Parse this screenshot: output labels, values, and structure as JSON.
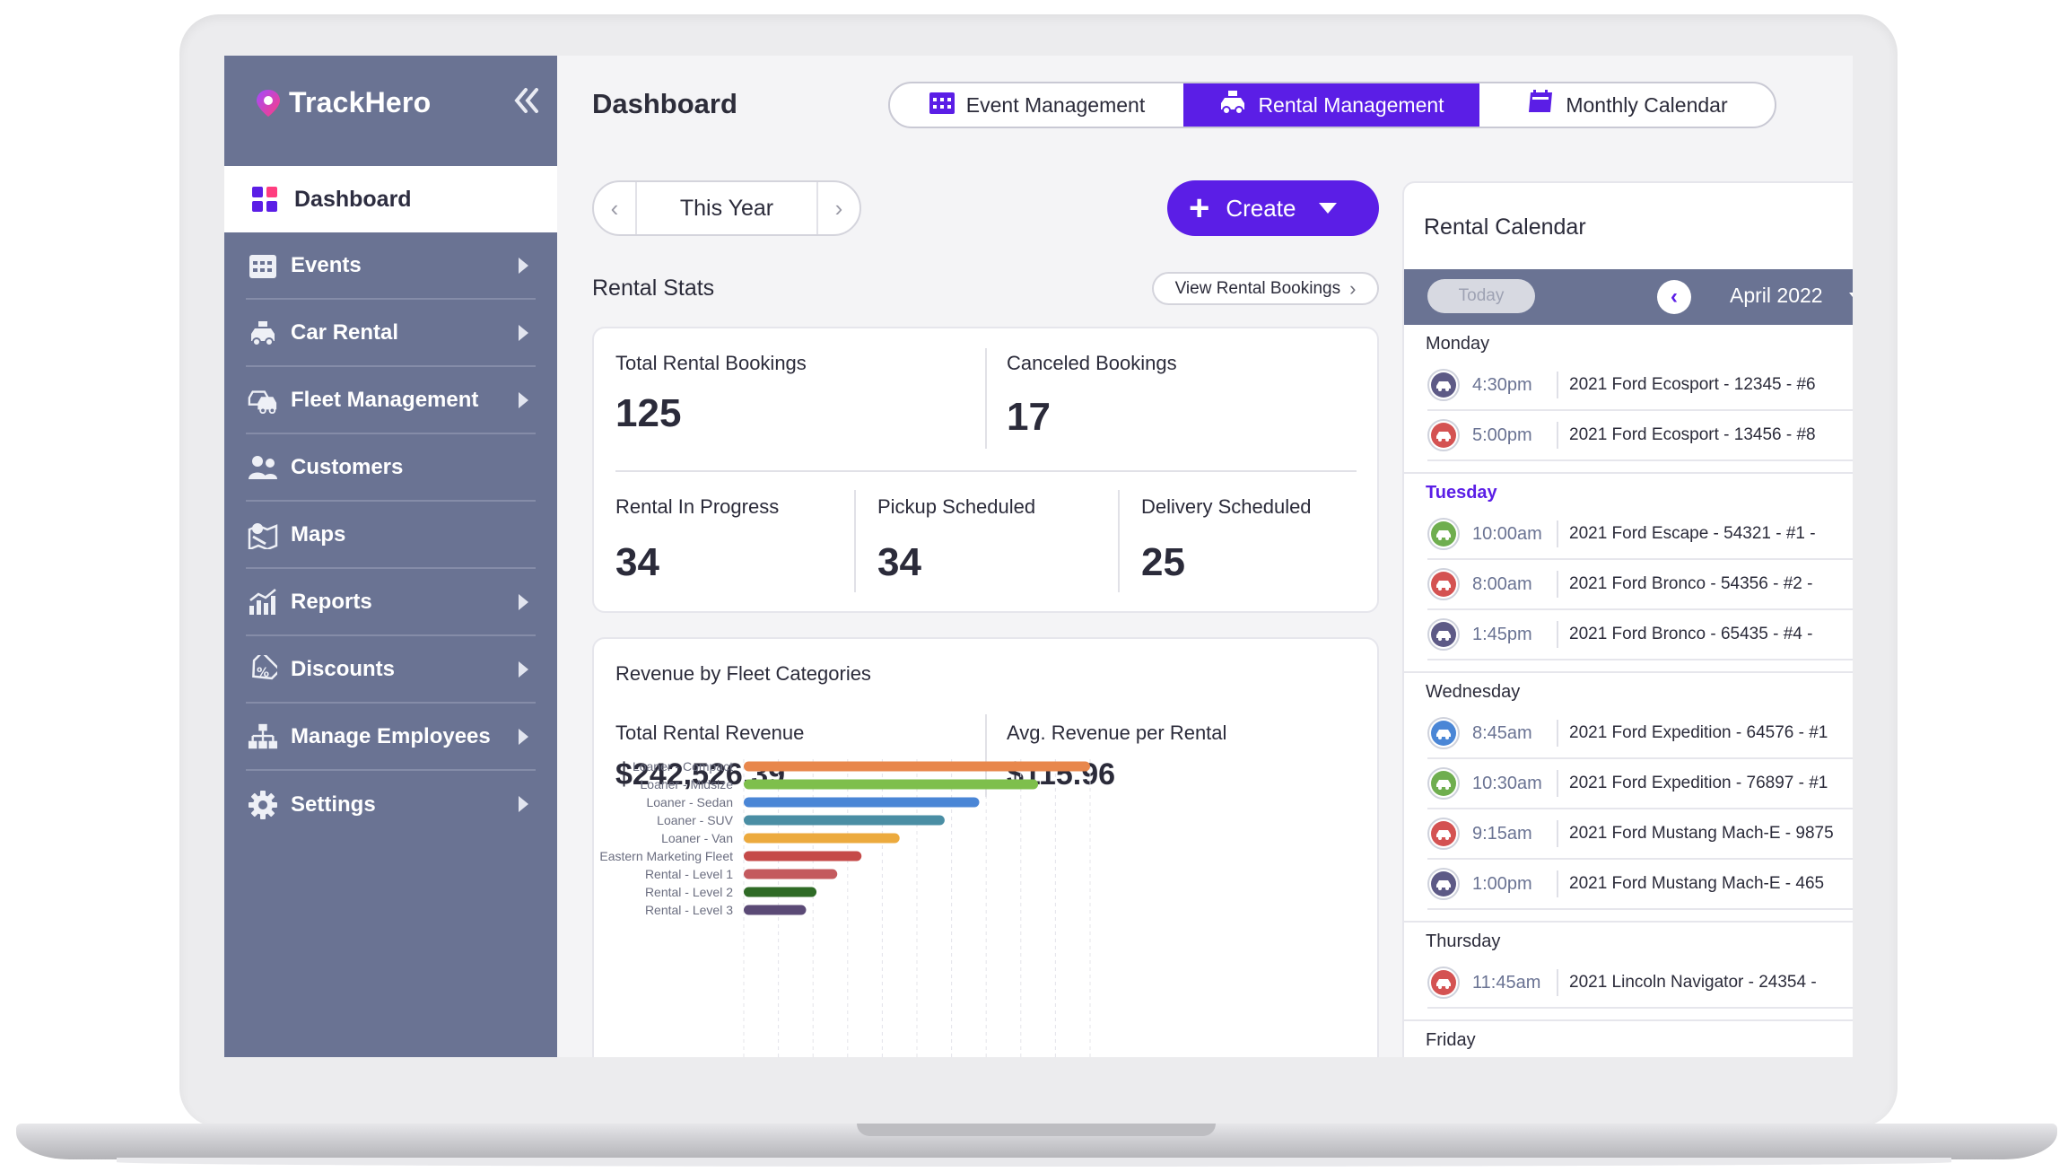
{
  "app": {
    "name": "TrackHero"
  },
  "sidebar": {
    "active": {
      "label": "Dashboard",
      "icon": "dashboard-icon"
    },
    "items": [
      {
        "label": "Events",
        "icon": "calendar-grid-icon",
        "expandable": true
      },
      {
        "label": "Car Rental",
        "icon": "car-rental-icon",
        "expandable": true
      },
      {
        "label": "Fleet Management",
        "icon": "fleet-icon",
        "expandable": true
      },
      {
        "label": "Customers",
        "icon": "customers-icon",
        "expandable": false
      },
      {
        "label": "Maps",
        "icon": "map-icon",
        "expandable": false
      },
      {
        "label": "Reports",
        "icon": "reports-icon",
        "expandable": true
      },
      {
        "label": "Discounts",
        "icon": "discount-tag-icon",
        "expandable": true
      },
      {
        "label": "Manage Employees",
        "icon": "org-chart-icon",
        "expandable": true
      },
      {
        "label": "Settings",
        "icon": "gear-icon",
        "expandable": true
      }
    ]
  },
  "header": {
    "title": "Dashboard",
    "tabs": [
      {
        "label": "Event Management",
        "icon": "calendar-grid-icon",
        "active": false
      },
      {
        "label": "Rental Management",
        "icon": "car-rental-icon",
        "active": true
      },
      {
        "label": "Monthly Calendar",
        "icon": "calendar-icon",
        "active": false
      }
    ]
  },
  "controls": {
    "period": "This Year",
    "create_label": "Create",
    "view_bookings_label": "View Rental Bookings"
  },
  "rental_stats": {
    "title": "Rental Stats",
    "total_bookings": {
      "label": "Total Rental Bookings",
      "value": "125"
    },
    "canceled": {
      "label": "Canceled Bookings",
      "value": "17"
    },
    "in_progress": {
      "label": "Rental In Progress",
      "value": "34"
    },
    "pickup": {
      "label": "Pickup Scheduled",
      "value": "34"
    },
    "delivery": {
      "label": "Delivery Scheduled",
      "value": "25"
    }
  },
  "revenue": {
    "title": "Revenue by Fleet Categories",
    "total": {
      "label": "Total Rental Revenue",
      "value": "$242,526.39"
    },
    "avg": {
      "label": "Avg. Revenue per Rental",
      "value": "$115.96"
    }
  },
  "chart_data": {
    "type": "bar",
    "orientation": "horizontal",
    "categories": [
      "Loaner - Compact",
      "Loaner - Midsize",
      "Loaner - Sedan",
      "Loaner - SUV",
      "Loaner - Van",
      "Eastern Marketing Fleet",
      "Rental - Level 1",
      "Rental - Level 2",
      "Rental - Level 3"
    ],
    "values": [
      100,
      85,
      68,
      58,
      45,
      34,
      27,
      21,
      18
    ],
    "colors": [
      "#e8874c",
      "#7ebf4c",
      "#4a86d6",
      "#4a8ea4",
      "#ecaa3e",
      "#c54a49",
      "#c45a5e",
      "#2f6b26",
      "#5b4a76"
    ],
    "xlim": [
      0,
      100
    ],
    "grid": true
  },
  "calendar": {
    "title": "Rental Calendar",
    "today_label": "Today",
    "month": "April 2022",
    "days": [
      {
        "name": "Monday",
        "active": false,
        "events": [
          {
            "time": "4:30pm",
            "desc": "2021 Ford Ecosport - 12345 - #6",
            "color": "#5d5a86"
          },
          {
            "time": "5:00pm",
            "desc": "2021 Ford Ecosport - 13456 - #8",
            "color": "#d45252"
          }
        ]
      },
      {
        "name": "Tuesday",
        "active": true,
        "events": [
          {
            "time": "10:00am",
            "desc": "2021 Ford Escape - 54321 - #1  -",
            "color": "#6fae4f"
          },
          {
            "time": "8:00am",
            "desc": "2021 Ford Bronco - 54356 - #2  -",
            "color": "#d45252"
          },
          {
            "time": "1:45pm",
            "desc": "2021 Ford Bronco - 65435 - #4  -",
            "color": "#5d5a86"
          }
        ]
      },
      {
        "name": "Wednesday",
        "active": false,
        "events": [
          {
            "time": "8:45am",
            "desc": "2021 Ford Expedition - 64576 - #1",
            "color": "#4a86d6"
          },
          {
            "time": "10:30am",
            "desc": "2021 Ford Expedition - 76897 - #1",
            "color": "#6fae4f"
          },
          {
            "time": "9:15am",
            "desc": "2021 Ford Mustang Mach-E - 9875",
            "color": "#d45252"
          },
          {
            "time": "1:00pm",
            "desc": "2021 Ford Mustang Mach-E - 465",
            "color": "#5d5a86"
          }
        ]
      },
      {
        "name": "Thursday",
        "active": false,
        "events": [
          {
            "time": "11:45am",
            "desc": "2021 Lincoln Navigator - 24354 -",
            "color": "#d45252"
          }
        ]
      },
      {
        "name": "Friday",
        "active": false,
        "events": []
      }
    ]
  }
}
